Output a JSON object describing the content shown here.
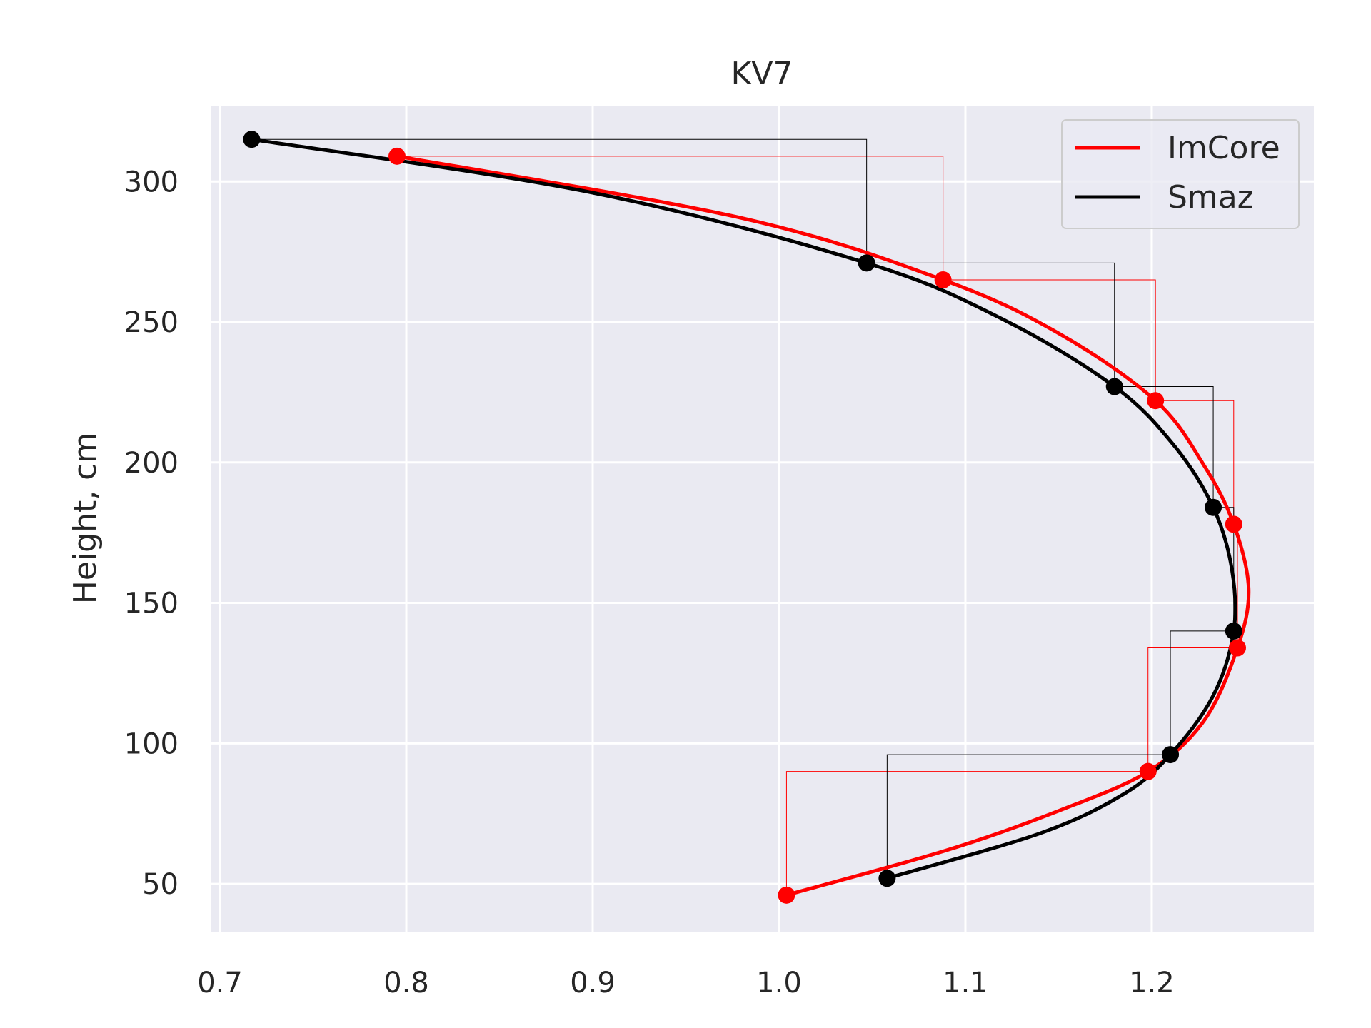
{
  "chart_data": {
    "type": "line",
    "title": "KV7",
    "xlabel": "",
    "ylabel": "Height, cm",
    "xlim": [
      0.695,
      1.287
    ],
    "ylim": [
      33,
      327
    ],
    "xticks": [
      0.7,
      0.8,
      0.9,
      1.0,
      1.1,
      1.2
    ],
    "xtick_labels": [
      "0.7",
      "0.8",
      "0.9",
      "1.0",
      "1.1",
      "1.2"
    ],
    "yticks": [
      50,
      100,
      150,
      200,
      250,
      300
    ],
    "ytick_labels": [
      "50",
      "100",
      "150",
      "200",
      "250",
      "300"
    ],
    "grid": true,
    "legend": "top-right",
    "series": [
      {
        "name": "ImCore",
        "color": "#ff0000",
        "points": [
          {
            "x": 1.004,
            "y": 46
          },
          {
            "x": 1.198,
            "y": 90
          },
          {
            "x": 1.246,
            "y": 134
          },
          {
            "x": 1.244,
            "y": 178
          },
          {
            "x": 1.202,
            "y": 222
          },
          {
            "x": 1.088,
            "y": 265
          },
          {
            "x": 0.795,
            "y": 309
          }
        ],
        "curve": [
          {
            "x": 1.004,
            "y": 46
          },
          {
            "x": 1.09,
            "y": 62
          },
          {
            "x": 1.15,
            "y": 76
          },
          {
            "x": 1.198,
            "y": 90
          },
          {
            "x": 1.228,
            "y": 108
          },
          {
            "x": 1.246,
            "y": 134
          },
          {
            "x": 1.252,
            "y": 155
          },
          {
            "x": 1.244,
            "y": 178
          },
          {
            "x": 1.228,
            "y": 199
          },
          {
            "x": 1.202,
            "y": 222
          },
          {
            "x": 1.15,
            "y": 246
          },
          {
            "x": 1.088,
            "y": 265
          },
          {
            "x": 0.98,
            "y": 287
          },
          {
            "x": 0.795,
            "y": 309
          }
        ]
      },
      {
        "name": "Smaz",
        "color": "#000000",
        "points": [
          {
            "x": 1.058,
            "y": 52
          },
          {
            "x": 1.21,
            "y": 96
          },
          {
            "x": 1.244,
            "y": 140
          },
          {
            "x": 1.233,
            "y": 184
          },
          {
            "x": 1.18,
            "y": 227
          },
          {
            "x": 1.047,
            "y": 271
          },
          {
            "x": 0.717,
            "y": 315
          }
        ],
        "curve": [
          {
            "x": 1.058,
            "y": 52
          },
          {
            "x": 1.14,
            "y": 68
          },
          {
            "x": 1.185,
            "y": 82
          },
          {
            "x": 1.21,
            "y": 96
          },
          {
            "x": 1.233,
            "y": 117
          },
          {
            "x": 1.244,
            "y": 140
          },
          {
            "x": 1.243,
            "y": 162
          },
          {
            "x": 1.233,
            "y": 184
          },
          {
            "x": 1.212,
            "y": 206
          },
          {
            "x": 1.18,
            "y": 227
          },
          {
            "x": 1.12,
            "y": 251
          },
          {
            "x": 1.047,
            "y": 271
          },
          {
            "x": 0.9,
            "y": 296
          },
          {
            "x": 0.717,
            "y": 315
          }
        ]
      }
    ]
  }
}
